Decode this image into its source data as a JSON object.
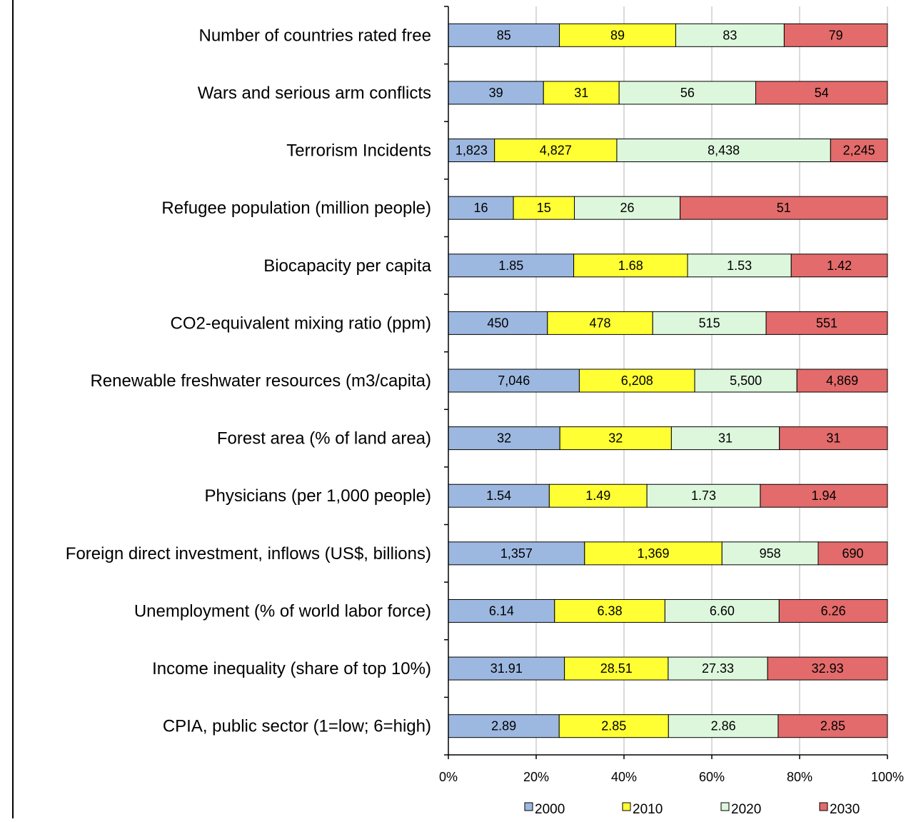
{
  "chart_data": {
    "type": "bar",
    "orientation": "horizontal",
    "stacked": "percent",
    "categories": [
      "Number of countries rated free",
      "Wars and serious arm conflicts",
      "Terrorism Incidents",
      "Refugee population (million people)",
      "Biocapacity per capita",
      "CO2-equivalent mixing ratio (ppm)",
      "Renewable freshwater resources (m3/capita)",
      "Forest area (% of land area)",
      "Physicians (per 1,000 people)",
      "Foreign direct investment, inflows (US$, billions)",
      "Unemployment  (% of world labor force)",
      "Income inequality (share of top 10%)",
      "CPIA, public sector (1=low; 6=high)"
    ],
    "series": [
      {
        "name": "2000",
        "color": "#9db8e0",
        "values": [
          85,
          39,
          1823,
          16,
          1.85,
          450,
          7046,
          32,
          1.54,
          1357,
          6.14,
          31.91,
          2.89
        ],
        "labels": [
          "85",
          "39",
          "1,823",
          "16",
          "1.85",
          "450",
          "7,046",
          "32",
          "1.54",
          "1,357",
          "6.14",
          "31.91",
          "2.89"
        ]
      },
      {
        "name": "2010",
        "color": "#ffff33",
        "values": [
          89,
          31,
          4827,
          15,
          1.68,
          478,
          6208,
          32,
          1.49,
          1369,
          6.38,
          28.51,
          2.85
        ],
        "labels": [
          "89",
          "31",
          "4,827",
          "15",
          "1.68",
          "478",
          "6,208",
          "32",
          "1.49",
          "1,369",
          "6.38",
          "28.51",
          "2.85"
        ]
      },
      {
        "name": "2020",
        "color": "#ddf7dd",
        "values": [
          83,
          56,
          8438,
          26,
          1.53,
          515,
          5500,
          31,
          1.73,
          958,
          6.6,
          27.33,
          2.86
        ],
        "labels": [
          "83",
          "56",
          "8,438",
          "26",
          "1.53",
          "515",
          "5,500",
          "31",
          "1.73",
          "958",
          "6.60",
          "27.33",
          "2.86"
        ]
      },
      {
        "name": "2030",
        "color": "#e36b6b",
        "values": [
          79,
          54,
          2245,
          51,
          1.42,
          551,
          4869,
          31,
          1.94,
          690,
          6.26,
          32.93,
          2.85
        ],
        "labels": [
          "79",
          "54",
          "2,245",
          "51",
          "1.42",
          "551",
          "4,869",
          "31",
          "1.94",
          "690",
          "6.26",
          "32.93",
          "2.85"
        ]
      }
    ],
    "xticks": [
      "0%",
      "20%",
      "40%",
      "60%",
      "80%",
      "100%"
    ],
    "xlim": [
      0,
      100
    ],
    "grid": true,
    "legend_position": "bottom"
  }
}
